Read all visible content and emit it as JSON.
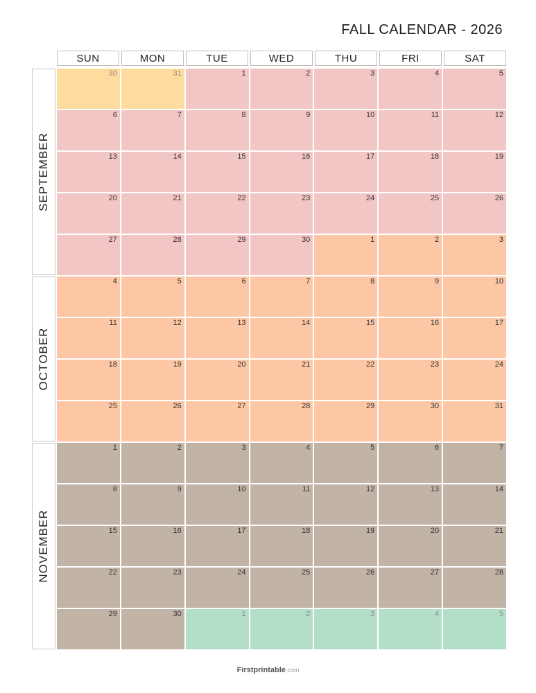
{
  "title": "FALL CALENDAR - 2026",
  "weekdays": [
    "SUN",
    "MON",
    "TUE",
    "WED",
    "THU",
    "FRI",
    "SAT"
  ],
  "months": [
    {
      "name": "SEPTEMBER",
      "rows": 5,
      "color": "#f2c6c5"
    },
    {
      "name": "OCTOBER",
      "rows": 4,
      "color": "#fdc6a4"
    },
    {
      "name": "NOVEMBER",
      "rows": 5,
      "color": "#c1b4a7"
    }
  ],
  "colors": {
    "august": "#fedb9e",
    "september": "#f2c6c5",
    "october": "#fdc6a4",
    "november": "#c1b4a7",
    "december": "#b3dec7"
  },
  "weeks": [
    [
      {
        "d": "30",
        "m": "august",
        "f": true
      },
      {
        "d": "31",
        "m": "august",
        "f": true
      },
      {
        "d": "1",
        "m": "september"
      },
      {
        "d": "2",
        "m": "september"
      },
      {
        "d": "3",
        "m": "september"
      },
      {
        "d": "4",
        "m": "september"
      },
      {
        "d": "5",
        "m": "september"
      }
    ],
    [
      {
        "d": "6",
        "m": "september"
      },
      {
        "d": "7",
        "m": "september"
      },
      {
        "d": "8",
        "m": "september"
      },
      {
        "d": "9",
        "m": "september"
      },
      {
        "d": "10",
        "m": "september"
      },
      {
        "d": "11",
        "m": "september"
      },
      {
        "d": "12",
        "m": "september"
      }
    ],
    [
      {
        "d": "13",
        "m": "september"
      },
      {
        "d": "14",
        "m": "september"
      },
      {
        "d": "15",
        "m": "september"
      },
      {
        "d": "16",
        "m": "september"
      },
      {
        "d": "17",
        "m": "september"
      },
      {
        "d": "18",
        "m": "september"
      },
      {
        "d": "19",
        "m": "september"
      }
    ],
    [
      {
        "d": "20",
        "m": "september"
      },
      {
        "d": "21",
        "m": "september"
      },
      {
        "d": "22",
        "m": "september"
      },
      {
        "d": "23",
        "m": "september"
      },
      {
        "d": "24",
        "m": "september"
      },
      {
        "d": "25",
        "m": "september"
      },
      {
        "d": "26",
        "m": "september"
      }
    ],
    [
      {
        "d": "27",
        "m": "september"
      },
      {
        "d": "28",
        "m": "september"
      },
      {
        "d": "29",
        "m": "september"
      },
      {
        "d": "30",
        "m": "september"
      },
      {
        "d": "1",
        "m": "october"
      },
      {
        "d": "2",
        "m": "october"
      },
      {
        "d": "3",
        "m": "october"
      }
    ],
    [
      {
        "d": "4",
        "m": "october"
      },
      {
        "d": "5",
        "m": "october"
      },
      {
        "d": "6",
        "m": "october"
      },
      {
        "d": "7",
        "m": "october"
      },
      {
        "d": "8",
        "m": "october"
      },
      {
        "d": "9",
        "m": "october"
      },
      {
        "d": "10",
        "m": "october"
      }
    ],
    [
      {
        "d": "11",
        "m": "october"
      },
      {
        "d": "12",
        "m": "october"
      },
      {
        "d": "13",
        "m": "october"
      },
      {
        "d": "14",
        "m": "october"
      },
      {
        "d": "15",
        "m": "october"
      },
      {
        "d": "16",
        "m": "october"
      },
      {
        "d": "17",
        "m": "october"
      }
    ],
    [
      {
        "d": "18",
        "m": "october"
      },
      {
        "d": "19",
        "m": "october"
      },
      {
        "d": "20",
        "m": "october"
      },
      {
        "d": "21",
        "m": "october"
      },
      {
        "d": "22",
        "m": "october"
      },
      {
        "d": "23",
        "m": "october"
      },
      {
        "d": "24",
        "m": "october"
      }
    ],
    [
      {
        "d": "25",
        "m": "october"
      },
      {
        "d": "26",
        "m": "october"
      },
      {
        "d": "27",
        "m": "october"
      },
      {
        "d": "28",
        "m": "october"
      },
      {
        "d": "29",
        "m": "october"
      },
      {
        "d": "30",
        "m": "october"
      },
      {
        "d": "31",
        "m": "october"
      }
    ],
    [
      {
        "d": "1",
        "m": "november"
      },
      {
        "d": "2",
        "m": "november"
      },
      {
        "d": "3",
        "m": "november"
      },
      {
        "d": "4",
        "m": "november"
      },
      {
        "d": "5",
        "m": "november"
      },
      {
        "d": "6",
        "m": "november"
      },
      {
        "d": "7",
        "m": "november"
      }
    ],
    [
      {
        "d": "8",
        "m": "november"
      },
      {
        "d": "9",
        "m": "november"
      },
      {
        "d": "10",
        "m": "november"
      },
      {
        "d": "11",
        "m": "november"
      },
      {
        "d": "12",
        "m": "november"
      },
      {
        "d": "13",
        "m": "november"
      },
      {
        "d": "14",
        "m": "november"
      }
    ],
    [
      {
        "d": "15",
        "m": "november"
      },
      {
        "d": "16",
        "m": "november"
      },
      {
        "d": "17",
        "m": "november"
      },
      {
        "d": "18",
        "m": "november"
      },
      {
        "d": "19",
        "m": "november"
      },
      {
        "d": "20",
        "m": "november"
      },
      {
        "d": "21",
        "m": "november"
      }
    ],
    [
      {
        "d": "22",
        "m": "november"
      },
      {
        "d": "23",
        "m": "november"
      },
      {
        "d": "24",
        "m": "november"
      },
      {
        "d": "25",
        "m": "november"
      },
      {
        "d": "26",
        "m": "november"
      },
      {
        "d": "27",
        "m": "november"
      },
      {
        "d": "28",
        "m": "november"
      }
    ],
    [
      {
        "d": "29",
        "m": "november"
      },
      {
        "d": "30",
        "m": "november"
      },
      {
        "d": "1",
        "m": "december",
        "f": true
      },
      {
        "d": "2",
        "m": "december",
        "f": true
      },
      {
        "d": "3",
        "m": "december",
        "f": true
      },
      {
        "d": "4",
        "m": "december",
        "f": true
      },
      {
        "d": "5",
        "m": "december",
        "f": true
      }
    ]
  ],
  "footer": {
    "brand": "Firstprintable",
    "domain": ".com"
  }
}
